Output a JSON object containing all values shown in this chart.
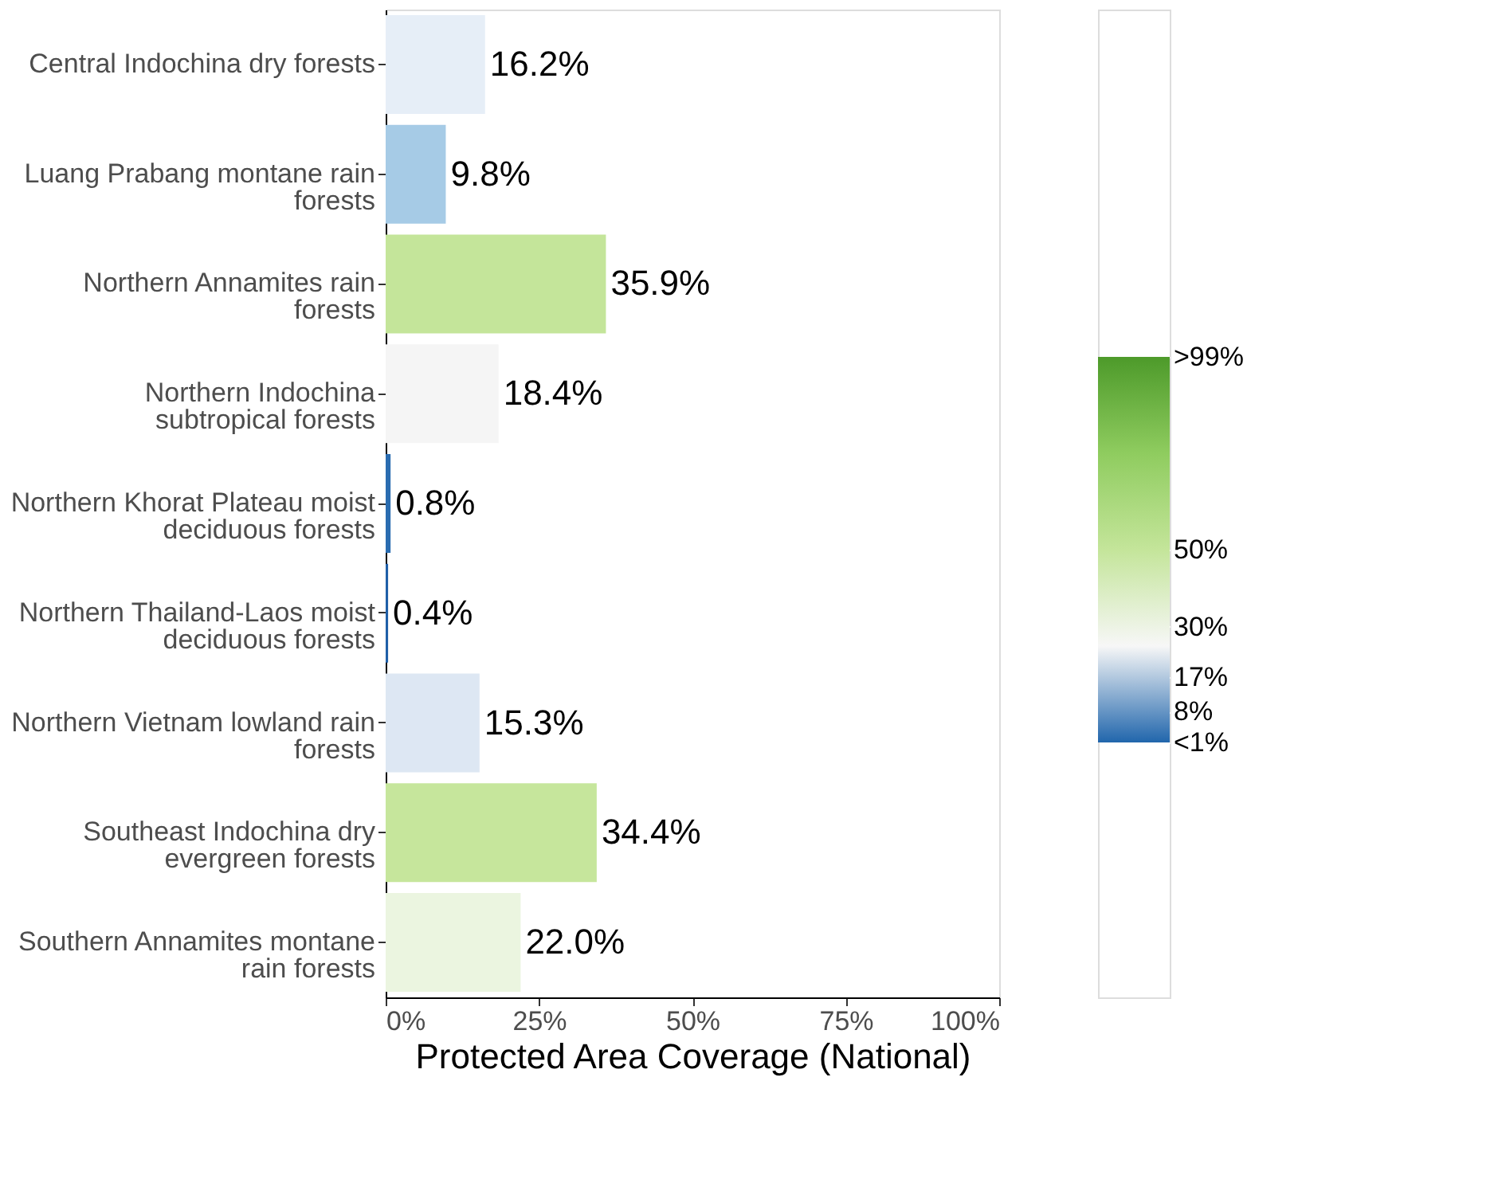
{
  "chart_data": {
    "type": "bar",
    "orientation": "horizontal",
    "xlabel": "Protected Area Coverage (National)",
    "categories": [
      "Central Indochina dry forests",
      "Luang Prabang montane rain forests",
      "Northern Annamites rain forests",
      "Northern Indochina subtropical forests",
      "Northern Khorat Plateau moist deciduous forests",
      "Northern Thailand-Laos moist deciduous forests",
      "Northern Vietnam lowland rain forests",
      "Southeast Indochina dry evergreen forests",
      "Southern Annamites montane rain forests"
    ],
    "values": [
      16.2,
      9.8,
      35.9,
      18.4,
      0.8,
      0.4,
      15.3,
      34.4,
      22.0
    ],
    "colors": [
      "#e6eef7",
      "#a6cbe6",
      "#c4e59a",
      "#f5f5f5",
      "#2a6cb0",
      "#1f5fa8",
      "#dde7f3",
      "#c6e69c",
      "#ebf5e0"
    ],
    "value_labels": [
      "16.2%",
      "9.8%",
      "35.9%",
      "18.4%",
      "0.8%",
      "0.4%",
      "15.3%",
      "34.4%",
      "22.0%"
    ],
    "xlim": [
      0,
      100
    ],
    "xticks": [
      {
        "value": 0,
        "label": "0%"
      },
      {
        "value": 25,
        "label": "25%"
      },
      {
        "value": 50,
        "label": "50%"
      },
      {
        "value": 75,
        "label": "75%"
      },
      {
        "value": 100,
        "label": "100%"
      }
    ],
    "clim": [
      0,
      100
    ],
    "cticks": [
      {
        "value": 0,
        "label": "<1%"
      },
      {
        "value": 8,
        "label": "8%"
      },
      {
        "value": 17,
        "label": "17%"
      },
      {
        "value": 30,
        "label": "30%"
      },
      {
        "value": 50,
        "label": "50%"
      },
      {
        "value": 100,
        "label": ">99%"
      }
    ],
    "grid": false
  }
}
